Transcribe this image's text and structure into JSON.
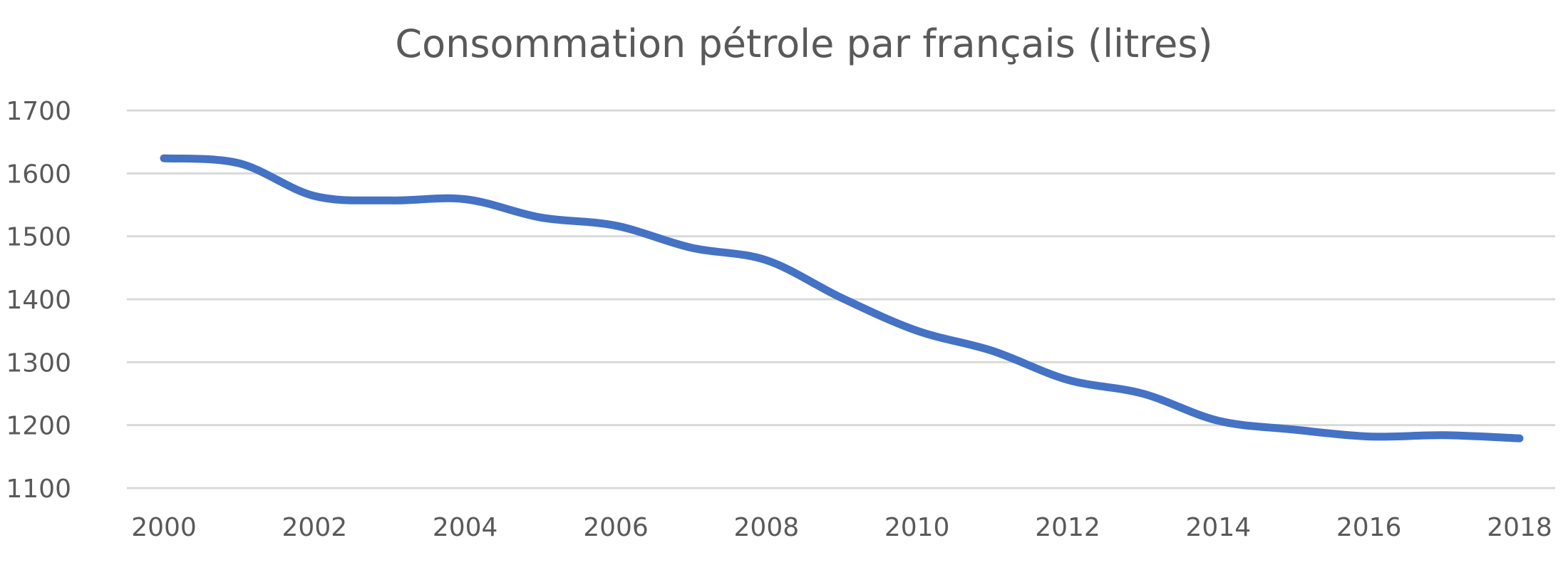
{
  "chart_data": {
    "type": "line",
    "title": "Consommation pétrole par français (litres)",
    "xlabel": "",
    "ylabel": "",
    "x": [
      2000,
      2001,
      2002,
      2003,
      2004,
      2005,
      2006,
      2007,
      2008,
      2009,
      2010,
      2011,
      2012,
      2013,
      2014,
      2015,
      2016,
      2017,
      2018
    ],
    "x_tick_labels": [
      "2000",
      "2002",
      "2004",
      "2006",
      "2008",
      "2010",
      "2012",
      "2014",
      "2016",
      "2018"
    ],
    "y_tick_labels": [
      "1100",
      "1200",
      "1300",
      "1400",
      "1500",
      "1600",
      "1700"
    ],
    "series": [
      {
        "values": [
          1624,
          1616,
          1564,
          1557,
          1559,
          1530,
          1517,
          1482,
          1462,
          1402,
          1350,
          1318,
          1272,
          1250,
          1207,
          1193,
          1182,
          1184,
          1179
        ]
      }
    ],
    "ylim": [
      1100,
      1700
    ],
    "xlim": [
      2000,
      2018
    ],
    "grid": true,
    "legend": "none",
    "smooth": true,
    "colors": {
      "line": "#4472c4",
      "grid": "#d9d9d9",
      "text": "#595959"
    }
  }
}
